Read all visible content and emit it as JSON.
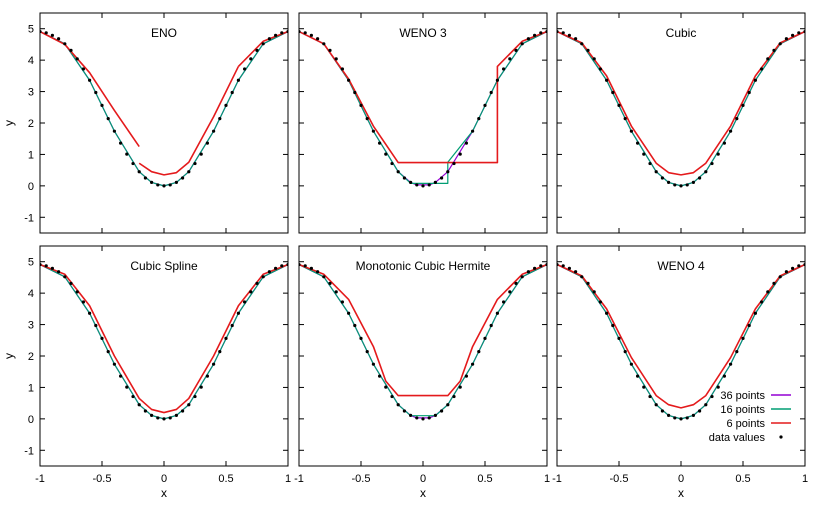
{
  "chart_data": {
    "type": "line",
    "layout": "2x3 panel grid",
    "shared_axes": {
      "xlabel": "x",
      "ylabel": "y",
      "xlim": [
        -1,
        1
      ],
      "ylim": [
        -1.5,
        5.5
      ],
      "xticks": [
        -1,
        -0.5,
        0,
        0.5,
        1
      ],
      "xtick_labels": [
        "-1",
        "-0.5",
        "0",
        "0.5",
        "1"
      ],
      "yticks": [
        -1,
        0,
        1,
        2,
        3,
        4,
        5
      ],
      "ytick_labels": [
        "-1",
        "0",
        "1",
        "2",
        "3",
        "4",
        "5"
      ],
      "grid": false
    },
    "legend": {
      "placement": "bottom-right of last panel",
      "entries": [
        {
          "label": "36 points",
          "color": "#9400d3",
          "style": "line"
        },
        {
          "label": "16 points",
          "color": "#009e73",
          "style": "line"
        },
        {
          "label": "6 points",
          "color": "#e41a1c",
          "style": "line"
        },
        {
          "label": "data values",
          "color": "#000000",
          "style": "dot"
        }
      ]
    },
    "data_values": {
      "x": [
        -1.0,
        -0.95,
        -0.9,
        -0.85,
        -0.8,
        -0.75,
        -0.7,
        -0.65,
        -0.6,
        -0.55,
        -0.5,
        -0.45,
        -0.4,
        -0.35,
        -0.3,
        -0.25,
        -0.2,
        -0.15,
        -0.1,
        -0.05,
        0.0,
        0.05,
        0.1,
        0.15,
        0.2,
        0.25,
        0.3,
        0.35,
        0.4,
        0.45,
        0.5,
        0.55,
        0.6,
        0.65,
        0.7,
        0.75,
        0.8,
        0.85,
        0.9,
        0.95,
        1.0
      ],
      "y": [
        4.91,
        4.87,
        4.79,
        4.68,
        4.52,
        4.31,
        4.04,
        3.72,
        3.36,
        2.97,
        2.56,
        2.14,
        1.74,
        1.36,
        1.01,
        0.71,
        0.45,
        0.25,
        0.11,
        0.03,
        0.0,
        0.03,
        0.11,
        0.25,
        0.45,
        0.71,
        1.01,
        1.36,
        1.74,
        2.14,
        2.56,
        2.97,
        3.36,
        3.72,
        4.04,
        4.31,
        4.52,
        4.68,
        4.79,
        4.87,
        4.91
      ]
    },
    "panels": [
      {
        "title": "ENO",
        "series": [
          {
            "name": "36 points",
            "x": [
              -1.0,
              -0.8,
              -0.6,
              -0.4,
              -0.2,
              -0.1,
              0.0,
              0.1,
              0.2,
              0.4,
              0.6,
              0.8,
              1.0
            ],
            "y": [
              4.91,
              4.52,
              3.36,
              1.74,
              0.45,
              0.11,
              0.0,
              0.11,
              0.45,
              1.74,
              3.36,
              4.52,
              4.91
            ]
          },
          {
            "name": "16 points",
            "x": [
              -1.0,
              -0.8,
              -0.6,
              -0.4,
              -0.2,
              -0.1,
              0.0,
              0.1,
              0.2,
              0.4,
              0.6,
              0.8,
              1.0
            ],
            "y": [
              4.91,
              4.52,
              3.36,
              1.74,
              0.45,
              0.11,
              0.0,
              0.11,
              0.45,
              1.74,
              3.36,
              4.52,
              4.91
            ]
          },
          {
            "name": "6 points",
            "segments": [
              {
                "x": [
                  -1.0,
                  -0.8,
                  -0.6,
                  -0.4,
                  -0.2
                ],
                "y": [
                  4.91,
                  4.5,
                  3.6,
                  2.4,
                  1.25
                ]
              },
              {
                "x": [
                  -0.2,
                  -0.1,
                  0.0,
                  0.1,
                  0.2,
                  0.4,
                  0.6
                ],
                "y": [
                  0.72,
                  0.45,
                  0.35,
                  0.42,
                  0.75,
                  2.2,
                  3.8
                ]
              },
              {
                "x": [
                  0.6,
                  0.8,
                  1.0
                ],
                "y": [
                  3.8,
                  4.6,
                  4.91
                ]
              }
            ]
          }
        ]
      },
      {
        "title": "WENO 3",
        "series": [
          {
            "name": "36 points",
            "x": [
              -1.0,
              -0.8,
              -0.6,
              -0.4,
              -0.2,
              -0.1,
              -0.05,
              0.0,
              0.05,
              0.1,
              0.2,
              0.4,
              0.6,
              0.8,
              1.0
            ],
            "y": [
              4.91,
              4.52,
              3.36,
              1.74,
              0.45,
              0.11,
              0.03,
              0.03,
              0.03,
              0.11,
              0.45,
              1.74,
              3.36,
              4.52,
              4.91
            ]
          },
          {
            "name": "16 points",
            "x": [
              -1.0,
              -0.8,
              -0.6,
              -0.4,
              -0.2,
              -0.1,
              0.0,
              0.1,
              0.2,
              0.2,
              0.4,
              0.6,
              0.8,
              1.0
            ],
            "y": [
              4.91,
              4.52,
              3.36,
              1.74,
              0.45,
              0.08,
              0.08,
              0.08,
              0.08,
              0.75,
              1.74,
              3.36,
              4.52,
              4.91
            ]
          },
          {
            "name": "6 points",
            "x": [
              -1.0,
              -0.8,
              -0.6,
              -0.4,
              -0.2,
              0.6,
              0.6,
              0.8,
              1.0
            ],
            "y": [
              4.91,
              4.52,
              3.4,
              1.9,
              0.74,
              0.74,
              3.8,
              4.6,
              4.91
            ]
          }
        ]
      },
      {
        "title": "Cubic",
        "series": [
          {
            "name": "36 points",
            "x": [
              -1.0,
              -0.8,
              -0.6,
              -0.4,
              -0.2,
              -0.1,
              0.0,
              0.1,
              0.2,
              0.4,
              0.6,
              0.8,
              1.0
            ],
            "y": [
              4.91,
              4.52,
              3.36,
              1.74,
              0.45,
              0.11,
              0.0,
              0.11,
              0.45,
              1.74,
              3.36,
              4.52,
              4.91
            ]
          },
          {
            "name": "16 points",
            "x": [
              -1.0,
              -0.8,
              -0.6,
              -0.4,
              -0.2,
              -0.1,
              0.0,
              0.1,
              0.2,
              0.4,
              0.6,
              0.8,
              1.0
            ],
            "y": [
              4.91,
              4.52,
              3.36,
              1.74,
              0.45,
              0.11,
              0.0,
              0.11,
              0.45,
              1.74,
              3.36,
              4.52,
              4.91
            ]
          },
          {
            "name": "6 points",
            "x": [
              -1.0,
              -0.8,
              -0.6,
              -0.4,
              -0.2,
              -0.1,
              0.0,
              0.1,
              0.2,
              0.4,
              0.6,
              0.8,
              1.0
            ],
            "y": [
              4.91,
              4.55,
              3.5,
              1.9,
              0.72,
              0.42,
              0.35,
              0.42,
              0.72,
              1.9,
              3.5,
              4.55,
              4.91
            ]
          }
        ]
      },
      {
        "title": "Cubic Spline",
        "series": [
          {
            "name": "36 points",
            "x": [
              -1.0,
              -0.8,
              -0.6,
              -0.4,
              -0.2,
              -0.1,
              0.0,
              0.1,
              0.2,
              0.4,
              0.6,
              0.8,
              1.0
            ],
            "y": [
              4.91,
              4.52,
              3.36,
              1.74,
              0.45,
              0.11,
              0.0,
              0.11,
              0.45,
              1.74,
              3.36,
              4.52,
              4.91
            ]
          },
          {
            "name": "16 points",
            "x": [
              -1.0,
              -0.8,
              -0.6,
              -0.4,
              -0.2,
              -0.1,
              0.0,
              0.1,
              0.2,
              0.4,
              0.6,
              0.8,
              1.0
            ],
            "y": [
              4.91,
              4.52,
              3.36,
              1.74,
              0.45,
              0.11,
              0.0,
              0.11,
              0.45,
              1.74,
              3.36,
              4.52,
              4.91
            ]
          },
          {
            "name": "6 points",
            "x": [
              -1.0,
              -0.8,
              -0.6,
              -0.4,
              -0.2,
              -0.1,
              0.0,
              0.1,
              0.2,
              0.4,
              0.6,
              0.8,
              1.0
            ],
            "y": [
              4.91,
              4.6,
              3.6,
              2.0,
              0.65,
              0.3,
              0.2,
              0.3,
              0.65,
              2.0,
              3.6,
              4.6,
              4.91
            ]
          }
        ]
      },
      {
        "title": "Monotonic Cubic Hermite",
        "series": [
          {
            "name": "36 points",
            "x": [
              -1.0,
              -0.8,
              -0.6,
              -0.4,
              -0.2,
              -0.1,
              -0.05,
              0.0,
              0.05,
              0.1,
              0.2,
              0.4,
              0.6,
              0.8,
              1.0
            ],
            "y": [
              4.91,
              4.52,
              3.36,
              1.74,
              0.45,
              0.11,
              0.03,
              0.03,
              0.03,
              0.11,
              0.45,
              1.74,
              3.36,
              4.52,
              4.91
            ]
          },
          {
            "name": "16 points",
            "x": [
              -1.0,
              -0.8,
              -0.6,
              -0.4,
              -0.2,
              -0.1,
              0.0,
              0.1,
              0.2,
              0.4,
              0.6,
              0.8,
              1.0
            ],
            "y": [
              4.91,
              4.52,
              3.36,
              1.74,
              0.45,
              0.1,
              0.1,
              0.1,
              0.45,
              1.74,
              3.36,
              4.52,
              4.91
            ]
          },
          {
            "name": "6 points",
            "x": [
              -1.0,
              -0.8,
              -0.6,
              -0.4,
              -0.3,
              -0.2,
              0.0,
              0.2,
              0.3,
              0.4,
              0.6,
              0.8,
              1.0
            ],
            "y": [
              4.91,
              4.6,
              3.8,
              2.3,
              1.2,
              0.74,
              0.74,
              0.74,
              1.2,
              2.3,
              3.8,
              4.6,
              4.91
            ]
          }
        ]
      },
      {
        "title": "WENO 4",
        "series": [
          {
            "name": "36 points",
            "x": [
              -1.0,
              -0.8,
              -0.6,
              -0.4,
              -0.2,
              -0.1,
              0.0,
              0.1,
              0.2,
              0.4,
              0.6,
              0.8,
              1.0
            ],
            "y": [
              4.91,
              4.52,
              3.36,
              1.74,
              0.45,
              0.11,
              0.0,
              0.11,
              0.45,
              1.74,
              3.36,
              4.52,
              4.91
            ]
          },
          {
            "name": "16 points",
            "x": [
              -1.0,
              -0.8,
              -0.6,
              -0.4,
              -0.2,
              -0.1,
              0.0,
              0.1,
              0.2,
              0.4,
              0.6,
              0.8,
              1.0
            ],
            "y": [
              4.91,
              4.52,
              3.36,
              1.74,
              0.45,
              0.11,
              0.0,
              0.11,
              0.45,
              1.74,
              3.36,
              4.52,
              4.91
            ]
          },
          {
            "name": "6 points",
            "x": [
              -1.0,
              -0.8,
              -0.6,
              -0.4,
              -0.2,
              -0.1,
              0.0,
              0.1,
              0.2,
              0.4,
              0.6,
              0.8,
              1.0
            ],
            "y": [
              4.91,
              4.55,
              3.5,
              1.95,
              0.74,
              0.45,
              0.35,
              0.45,
              0.74,
              1.95,
              3.5,
              4.55,
              4.91
            ]
          }
        ]
      }
    ]
  }
}
